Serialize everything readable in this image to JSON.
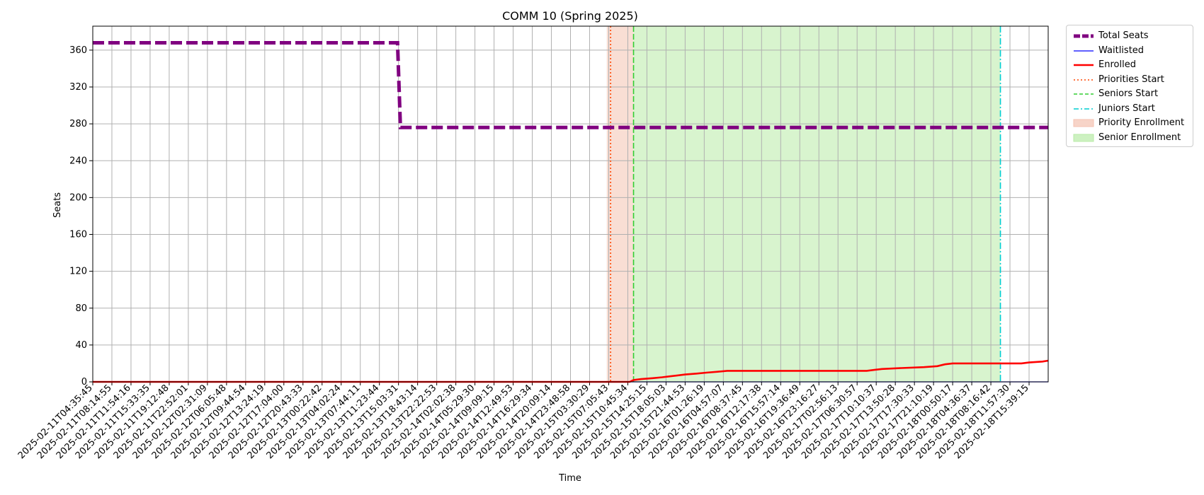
{
  "chart_data": {
    "type": "line",
    "title": "COMM 10 (Spring 2025)",
    "xlabel": "Time",
    "ylabel": "Seats",
    "ylim": [
      0,
      386
    ],
    "yticks": [
      0,
      40,
      80,
      120,
      160,
      200,
      240,
      280,
      320,
      360
    ],
    "grid": true,
    "legend_placement": "outside-top-right",
    "x_tick_labels": [
      "2025-02-11T04:35:45",
      "2025-02-11T08:14:55",
      "2025-02-11T11:54:16",
      "2025-02-11T15:33:35",
      "2025-02-11T19:12:48",
      "2025-02-11T22:52:01",
      "2025-02-12T02:31:09",
      "2025-02-12T06:05:48",
      "2025-02-12T09:44:54",
      "2025-02-12T13:24:19",
      "2025-02-12T17:04:00",
      "2025-02-12T20:43:33",
      "2025-02-13T00:22:42",
      "2025-02-13T04:02:24",
      "2025-02-13T07:44:11",
      "2025-02-13T11:23:44",
      "2025-02-13T15:03:31",
      "2025-02-13T18:43:14",
      "2025-02-13T22:22:53",
      "2025-02-14T02:02:38",
      "2025-02-14T05:29:30",
      "2025-02-14T09:09:15",
      "2025-02-14T12:49:53",
      "2025-02-14T16:29:34",
      "2025-02-14T20:09:14",
      "2025-02-14T23:48:58",
      "2025-02-15T03:30:29",
      "2025-02-15T07:05:43",
      "2025-02-15T10:45:34",
      "2025-02-15T14:25:15",
      "2025-02-15T18:05:03",
      "2025-02-15T21:44:53",
      "2025-02-16T01:26:19",
      "2025-02-16T04:57:07",
      "2025-02-16T08:37:45",
      "2025-02-16T12:17:38",
      "2025-02-16T15:57:14",
      "2025-02-16T19:36:49",
      "2025-02-16T23:16:27",
      "2025-02-17T02:56:13",
      "2025-02-17T06:30:57",
      "2025-02-17T10:10:37",
      "2025-02-17T13:50:28",
      "2025-02-17T17:30:33",
      "2025-02-17T21:10:19",
      "2025-02-18T00:50:17",
      "2025-02-18T04:36:37",
      "2025-02-18T08:16:42",
      "2025-02-18T11:57:30",
      "2025-02-18T15:39:15"
    ],
    "series": [
      {
        "name": "Total Seats",
        "color": "#800080",
        "style": "dashed",
        "points": [
          [
            0,
            368
          ],
          [
            15.95,
            368
          ],
          [
            16.1,
            276
          ],
          [
            50,
            276
          ]
        ]
      },
      {
        "name": "Waitlisted",
        "color": "#0000ff",
        "style": "solid",
        "points": [
          [
            0,
            0
          ],
          [
            50,
            0
          ]
        ]
      },
      {
        "name": "Enrolled",
        "color": "#ff0000",
        "style": "solid",
        "points": [
          [
            0,
            0
          ],
          [
            28.1,
            0
          ],
          [
            28.3,
            2
          ],
          [
            28.7,
            3
          ],
          [
            29.3,
            4
          ],
          [
            29.8,
            5
          ],
          [
            30.2,
            6
          ],
          [
            30.6,
            7
          ],
          [
            31.0,
            8
          ],
          [
            31.6,
            9
          ],
          [
            32.1,
            10
          ],
          [
            32.7,
            11
          ],
          [
            33.2,
            12
          ],
          [
            40.5,
            12
          ],
          [
            40.9,
            13
          ],
          [
            41.3,
            14
          ],
          [
            42.3,
            15
          ],
          [
            43.5,
            16
          ],
          [
            44.2,
            17
          ],
          [
            44.6,
            19
          ],
          [
            45.0,
            20
          ],
          [
            48.0,
            20
          ],
          [
            48.6,
            20
          ],
          [
            49.0,
            21
          ],
          [
            49.7,
            22
          ],
          [
            50,
            23
          ]
        ]
      }
    ],
    "markers": [
      {
        "name": "Priorities Start",
        "x": 27.1,
        "color": "#ff4500",
        "style": "dotted"
      },
      {
        "name": "Seniors Start",
        "x": 28.3,
        "color": "#32cd32",
        "style": "dashed"
      },
      {
        "name": "Juniors Start",
        "x": 47.5,
        "color": "#00ced1",
        "style": "dashdot"
      }
    ],
    "regions": [
      {
        "name": "Priority Enrollment",
        "x0": 26.9,
        "x1": 28.3,
        "color": "#f4c2b0"
      },
      {
        "name": "Senior Enrollment",
        "x0": 28.3,
        "x1": 47.5,
        "color": "#b8eba6"
      }
    ]
  },
  "legend": [
    {
      "label": "Total Seats",
      "kind": "line",
      "color": "#800080",
      "style": "dashed-thick"
    },
    {
      "label": "Waitlisted",
      "kind": "line",
      "color": "#0000ff",
      "style": "solid-thin"
    },
    {
      "label": "Enrolled",
      "kind": "line",
      "color": "#ff0000",
      "style": "solid"
    },
    {
      "label": "Priorities Start",
      "kind": "line",
      "color": "#ff4500",
      "style": "dotted"
    },
    {
      "label": "Seniors Start",
      "kind": "line",
      "color": "#32cd32",
      "style": "dashed"
    },
    {
      "label": "Juniors Start",
      "kind": "line",
      "color": "#00ced1",
      "style": "dashdot"
    },
    {
      "label": "Priority Enrollment",
      "kind": "patch",
      "color": "#f4c2b0"
    },
    {
      "label": "Senior Enrollment",
      "kind": "patch",
      "color": "#b8eba6"
    }
  ]
}
